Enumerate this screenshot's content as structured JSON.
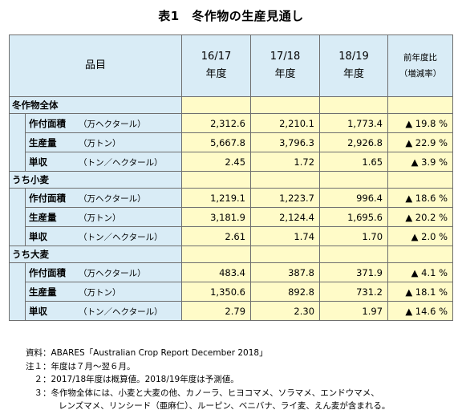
{
  "title": "表1　冬作物の生産見通し",
  "table": {
    "header": {
      "item_label": "品目",
      "years": [
        {
          "year": "16/17",
          "suffix": "年度"
        },
        {
          "year": "17/18",
          "suffix": "年度"
        },
        {
          "year": "18/19",
          "suffix": "年度"
        }
      ],
      "change_line1": "前年度比",
      "change_line2": "（増減率）"
    },
    "sections": [
      {
        "name": "冬作物全体",
        "rows": [
          {
            "label": "作付面積",
            "unit": "（万ヘクタール）",
            "values": [
              "2,312.6",
              "2,210.1",
              "1,773.4"
            ],
            "change": "▲ 19.8 %"
          },
          {
            "label": "生産量",
            "unit": "（万トン）",
            "values": [
              "5,667.8",
              "3,796.3",
              "2,926.8"
            ],
            "change": "▲ 22.9 %"
          },
          {
            "label": "単収",
            "unit": "（トン／ヘクタール）",
            "values": [
              "2.45",
              "1.72",
              "1.65"
            ],
            "change": "▲ 3.9 %"
          }
        ]
      },
      {
        "name": "うち小麦",
        "rows": [
          {
            "label": "作付面積",
            "unit": "（万ヘクタール）",
            "values": [
              "1,219.1",
              "1,223.7",
              "996.4"
            ],
            "change": "▲ 18.6 %"
          },
          {
            "label": "生産量",
            "unit": "（万トン）",
            "values": [
              "3,181.9",
              "2,124.4",
              "1,695.6"
            ],
            "change": "▲ 20.2 %"
          },
          {
            "label": "単収",
            "unit": "（トン／ヘクタール）",
            "values": [
              "2.61",
              "1.74",
              "1.70"
            ],
            "change": "▲ 2.0 %"
          }
        ]
      },
      {
        "name": "うち大麦",
        "rows": [
          {
            "label": "作付面積",
            "unit": "（万ヘクタール）",
            "values": [
              "483.4",
              "387.8",
              "371.9"
            ],
            "change": "▲ 4.1 %"
          },
          {
            "label": "生産量",
            "unit": "（万トン）",
            "values": [
              "1,350.6",
              "892.8",
              "731.2"
            ],
            "change": "▲ 18.1 %"
          },
          {
            "label": "単収",
            "unit": "（トン／ヘクタール）",
            "values": [
              "2.79",
              "2.30",
              "1.97"
            ],
            "change": "▲ 14.6 %"
          }
        ]
      }
    ]
  },
  "notes": [
    "資料：ABARES「Australian Crop Report December 2018」",
    "注１：年度は７月～翌６月。",
    "　２：2017/18年度は概算値。2018/19年度は予測値。",
    "　３：冬作物全体には、小麦と大麦の他、カノーラ、ヒヨコマメ、ソラマメ、エンドウマメ、",
    "レンズマメ、リンシード（亜麻仁）、ルーピン、ベニバナ、ライ麦、えん麦が含まれる。"
  ],
  "colors": {
    "header_bg": "#d9ecf6",
    "value_bg": "#fffbc8",
    "border": "#6f6f6f"
  }
}
